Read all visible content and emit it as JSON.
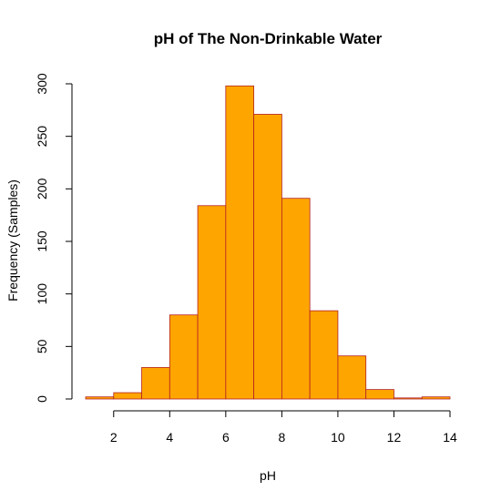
{
  "chart_data": {
    "type": "bar",
    "title": "pH of The Non-Drinkable Water",
    "xlabel": "pH",
    "ylabel": "Frequency (Samples)",
    "bin_edges": [
      1,
      2,
      3,
      4,
      5,
      6,
      7,
      8,
      9,
      10,
      11,
      12,
      13,
      14
    ],
    "values": [
      2,
      6,
      30,
      80,
      184,
      298,
      271,
      191,
      84,
      41,
      9,
      1,
      2
    ],
    "xlim": [
      1,
      14
    ],
    "ylim": [
      0,
      300
    ],
    "x_ticks": [
      2,
      4,
      6,
      8,
      10,
      12,
      14
    ],
    "y_ticks": [
      0,
      50,
      100,
      150,
      200,
      250,
      300
    ],
    "bar_fill": "#FFA500",
    "bar_border": "#B22222",
    "grid": false,
    "legend": "none"
  }
}
